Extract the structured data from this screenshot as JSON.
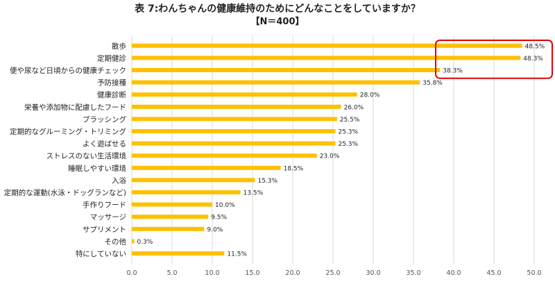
{
  "chart_data": {
    "type": "bar",
    "orientation": "horizontal",
    "title": "表 7:わんちゃんの健康維持のためにどんなことをしていますか？",
    "subtitle": "【N＝400】",
    "categories": [
      "散歩",
      "定期健診",
      "便や尿など日頃からの健康チェック",
      "予防接種",
      "健康診断",
      "栄養や添加物に配慮したフード",
      "ブラッシング",
      "定期的なグルーミング・トリミング",
      "よく遊ばせる",
      "ストレスのない生活環境",
      "睡眠しやすい環境",
      "入浴",
      "定期的な運動(水泳・ドッグランなど)",
      "手作りフード",
      "マッサージ",
      "サプリメント",
      "その他",
      "特にしていない"
    ],
    "values": [
      48.5,
      48.3,
      38.3,
      35.8,
      28.0,
      26.0,
      25.5,
      25.3,
      25.3,
      23.0,
      18.5,
      15.3,
      13.5,
      10.0,
      9.5,
      9.0,
      0.3,
      11.5
    ],
    "value_labels": [
      "48.5%",
      "48.3%",
      "38.3%",
      "35.8%",
      "28.0%",
      "26.0%",
      "25.5%",
      "25.3%",
      "25.3%",
      "23.0%",
      "18.5%",
      "15.3%",
      "13.5%",
      "10.0%",
      "9.5%",
      "9.0%",
      "0.3%",
      "11.5%"
    ],
    "xticks": [
      "0.0",
      "5.0",
      "10.0",
      "15.0",
      "20.0",
      "25.0",
      "30.0",
      "35.0",
      "40.0",
      "45.0",
      "50.0"
    ],
    "xlim": [
      0,
      50
    ],
    "grid": true,
    "bar_color": "#FFC000",
    "grid_color": "#d9d9d9",
    "highlight_box_color": "#e00000",
    "highlight_categories": [
      "散歩",
      "定期健診",
      "便や尿など日頃からの健康チェック"
    ]
  }
}
